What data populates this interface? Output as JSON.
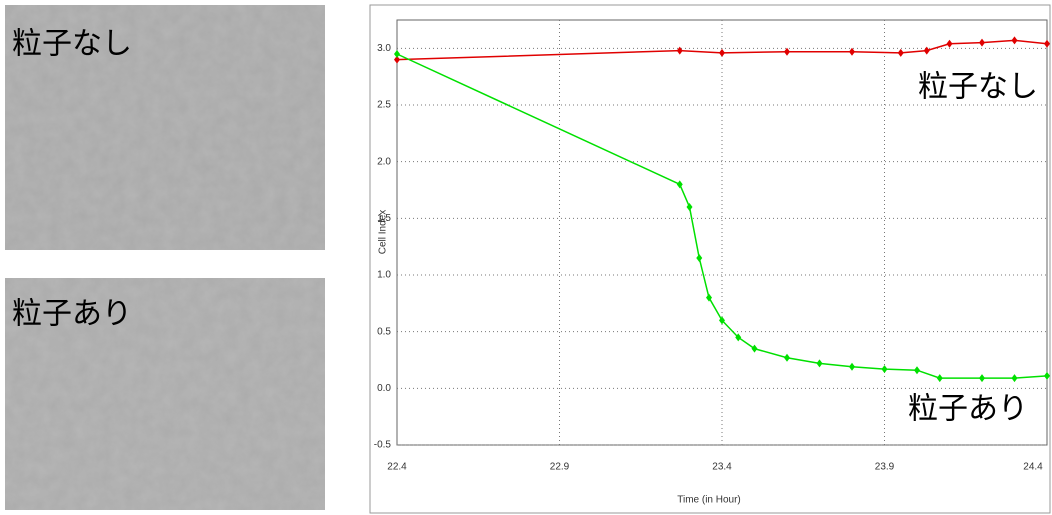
{
  "images": [
    {
      "label": "粒子なし"
    },
    {
      "label": "粒子あり"
    }
  ],
  "chart_data": {
    "type": "line",
    "xlabel": "Time (in Hour)",
    "ylabel": "Cell Index",
    "xlim": [
      22.4,
      24.4
    ],
    "ylim": [
      -0.5,
      3.25
    ],
    "xticks": [
      22.4,
      22.9,
      23.4,
      23.9,
      24.4
    ],
    "yticks": [
      -0.5,
      {
        "value": 0,
        "label": "0.0"
      },
      0.5,
      {
        "value": 1,
        "label": "1.0"
      },
      1.5,
      {
        "value": 2,
        "label": "2.0"
      },
      2.5,
      {
        "value": 3,
        "label": "3.0"
      }
    ],
    "grid": true,
    "annotations": [
      "粒子なし",
      "粒子あり"
    ],
    "series": [
      {
        "color": "#e00000",
        "x": [
          22.4,
          23.27,
          23.4,
          23.6,
          23.8,
          23.95,
          24.03,
          24.1,
          24.2,
          24.3,
          24.4
        ],
        "values": [
          2.9,
          2.98,
          2.96,
          2.97,
          2.97,
          2.96,
          2.98,
          3.04,
          3.05,
          3.07,
          3.04
        ]
      },
      {
        "color": "#00e000",
        "x": [
          22.4,
          23.27,
          23.3,
          23.33,
          23.36,
          23.4,
          23.45,
          23.5,
          23.6,
          23.7,
          23.8,
          23.9,
          24.0,
          24.07,
          24.2,
          24.3,
          24.4
        ],
        "values": [
          2.95,
          1.8,
          1.6,
          1.15,
          0.8,
          0.6,
          0.45,
          0.35,
          0.27,
          0.22,
          0.19,
          0.17,
          0.16,
          0.09,
          0.09,
          0.09,
          0.11
        ]
      }
    ]
  }
}
